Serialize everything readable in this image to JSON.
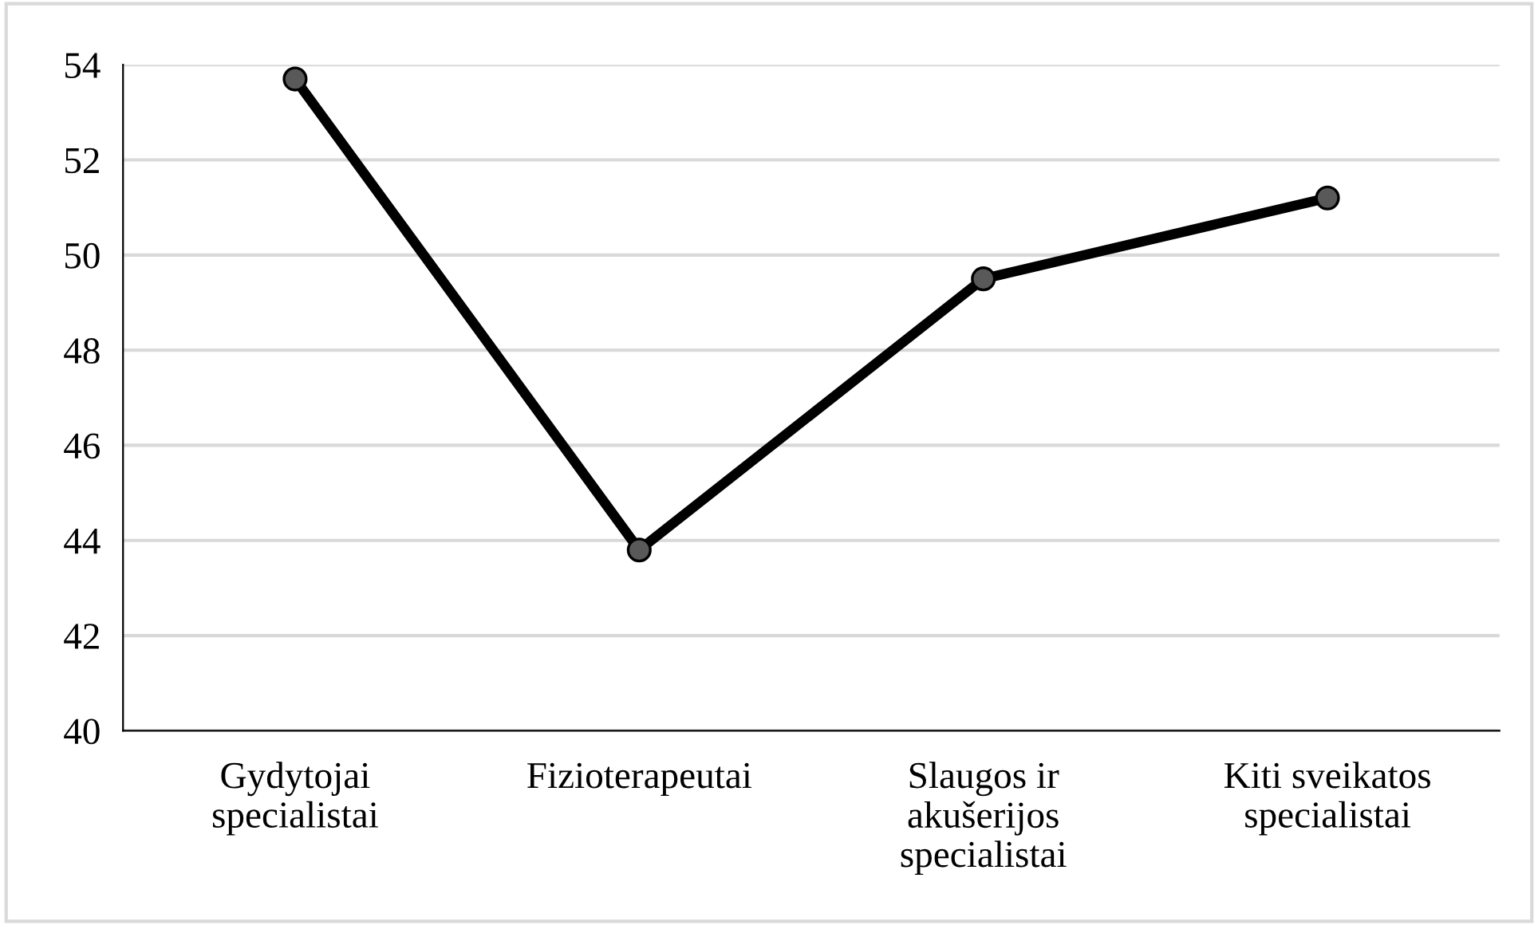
{
  "chart_data": {
    "type": "line",
    "categories": [
      "Gydytojai\nspecialistai",
      "Fizioterapeutai",
      "Slaugos ir\nakušerijos\nspecialistai",
      "Kiti sveikatos\nspecialistai"
    ],
    "series": [
      {
        "color": "#000000",
        "values": [
          53.7,
          43.8,
          49.5,
          51.2
        ]
      }
    ],
    "ylim": [
      40,
      54
    ],
    "yticks": [
      40,
      42,
      44,
      46,
      48,
      50,
      52,
      54
    ],
    "grid": "y",
    "marker": "circle",
    "line_style": "solid"
  }
}
